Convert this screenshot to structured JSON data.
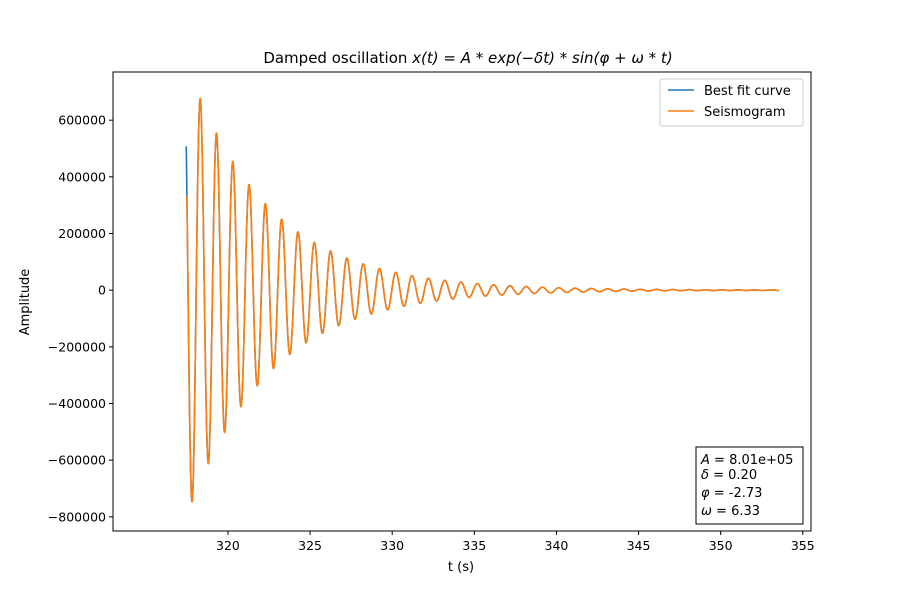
{
  "chart_data": {
    "type": "line",
    "title": "Damped oscillation x(t) = A * exp(−δt) * sin(φ + ω * t)",
    "xlabel": "t (s)",
    "ylabel": "Amplitude",
    "xlim": [
      313,
      355.5
    ],
    "ylim": [
      -850000,
      770000
    ],
    "xticks": [
      320,
      325,
      330,
      335,
      340,
      345,
      350,
      355
    ],
    "yticks": [
      -800000,
      -600000,
      -400000,
      -200000,
      0,
      200000,
      400000,
      600000
    ],
    "grid": false,
    "legend_position": "upper right",
    "model": {
      "A": 801000,
      "delta": 0.2,
      "phi": -2.73,
      "omega": 6.33,
      "t_start": 317.46,
      "t_end": 353.56,
      "decay_reference_t": 317.46
    },
    "series": [
      {
        "name": "Best fit curve",
        "color": "#1f77b4",
        "t_start": 317.46,
        "t_end": 353.56
      },
      {
        "name": "Seismogram",
        "color": "#ff7f0e",
        "t_start": 317.5,
        "t_end": 353.56
      }
    ],
    "param_box": {
      "A": "8.01e+05",
      "delta": "0.20",
      "phi": "-2.73",
      "omega": "6.33"
    }
  }
}
